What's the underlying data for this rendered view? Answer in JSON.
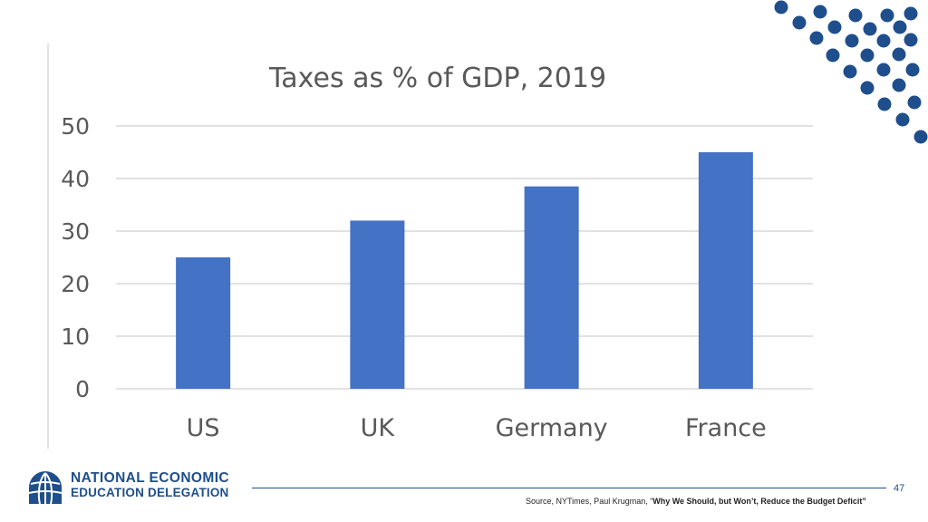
{
  "chart_data": {
    "type": "bar",
    "title": "Taxes as % of GDP, 2019",
    "categories": [
      "US",
      "UK",
      "Germany",
      "France"
    ],
    "values": [
      25,
      32,
      38.5,
      45
    ],
    "ylim": [
      0,
      50
    ],
    "yticks": [
      0,
      10,
      20,
      30,
      40,
      50
    ],
    "xlabel": "",
    "ylabel": "",
    "grid": true,
    "bar_color": "#4472c4"
  },
  "branding": {
    "logo_line1": "NATIONAL ECONOMIC",
    "logo_line2": "EDUCATION DELEGATION",
    "accent_color": "#1f4e8c",
    "logo_icon": "globe-icon"
  },
  "footer": {
    "page_number": "47",
    "source_prefix": "Source, NYTimes, Paul Krugman, “",
    "source_title": "Why We Should, but Won’t, Reduce the Budget Deficit”"
  }
}
